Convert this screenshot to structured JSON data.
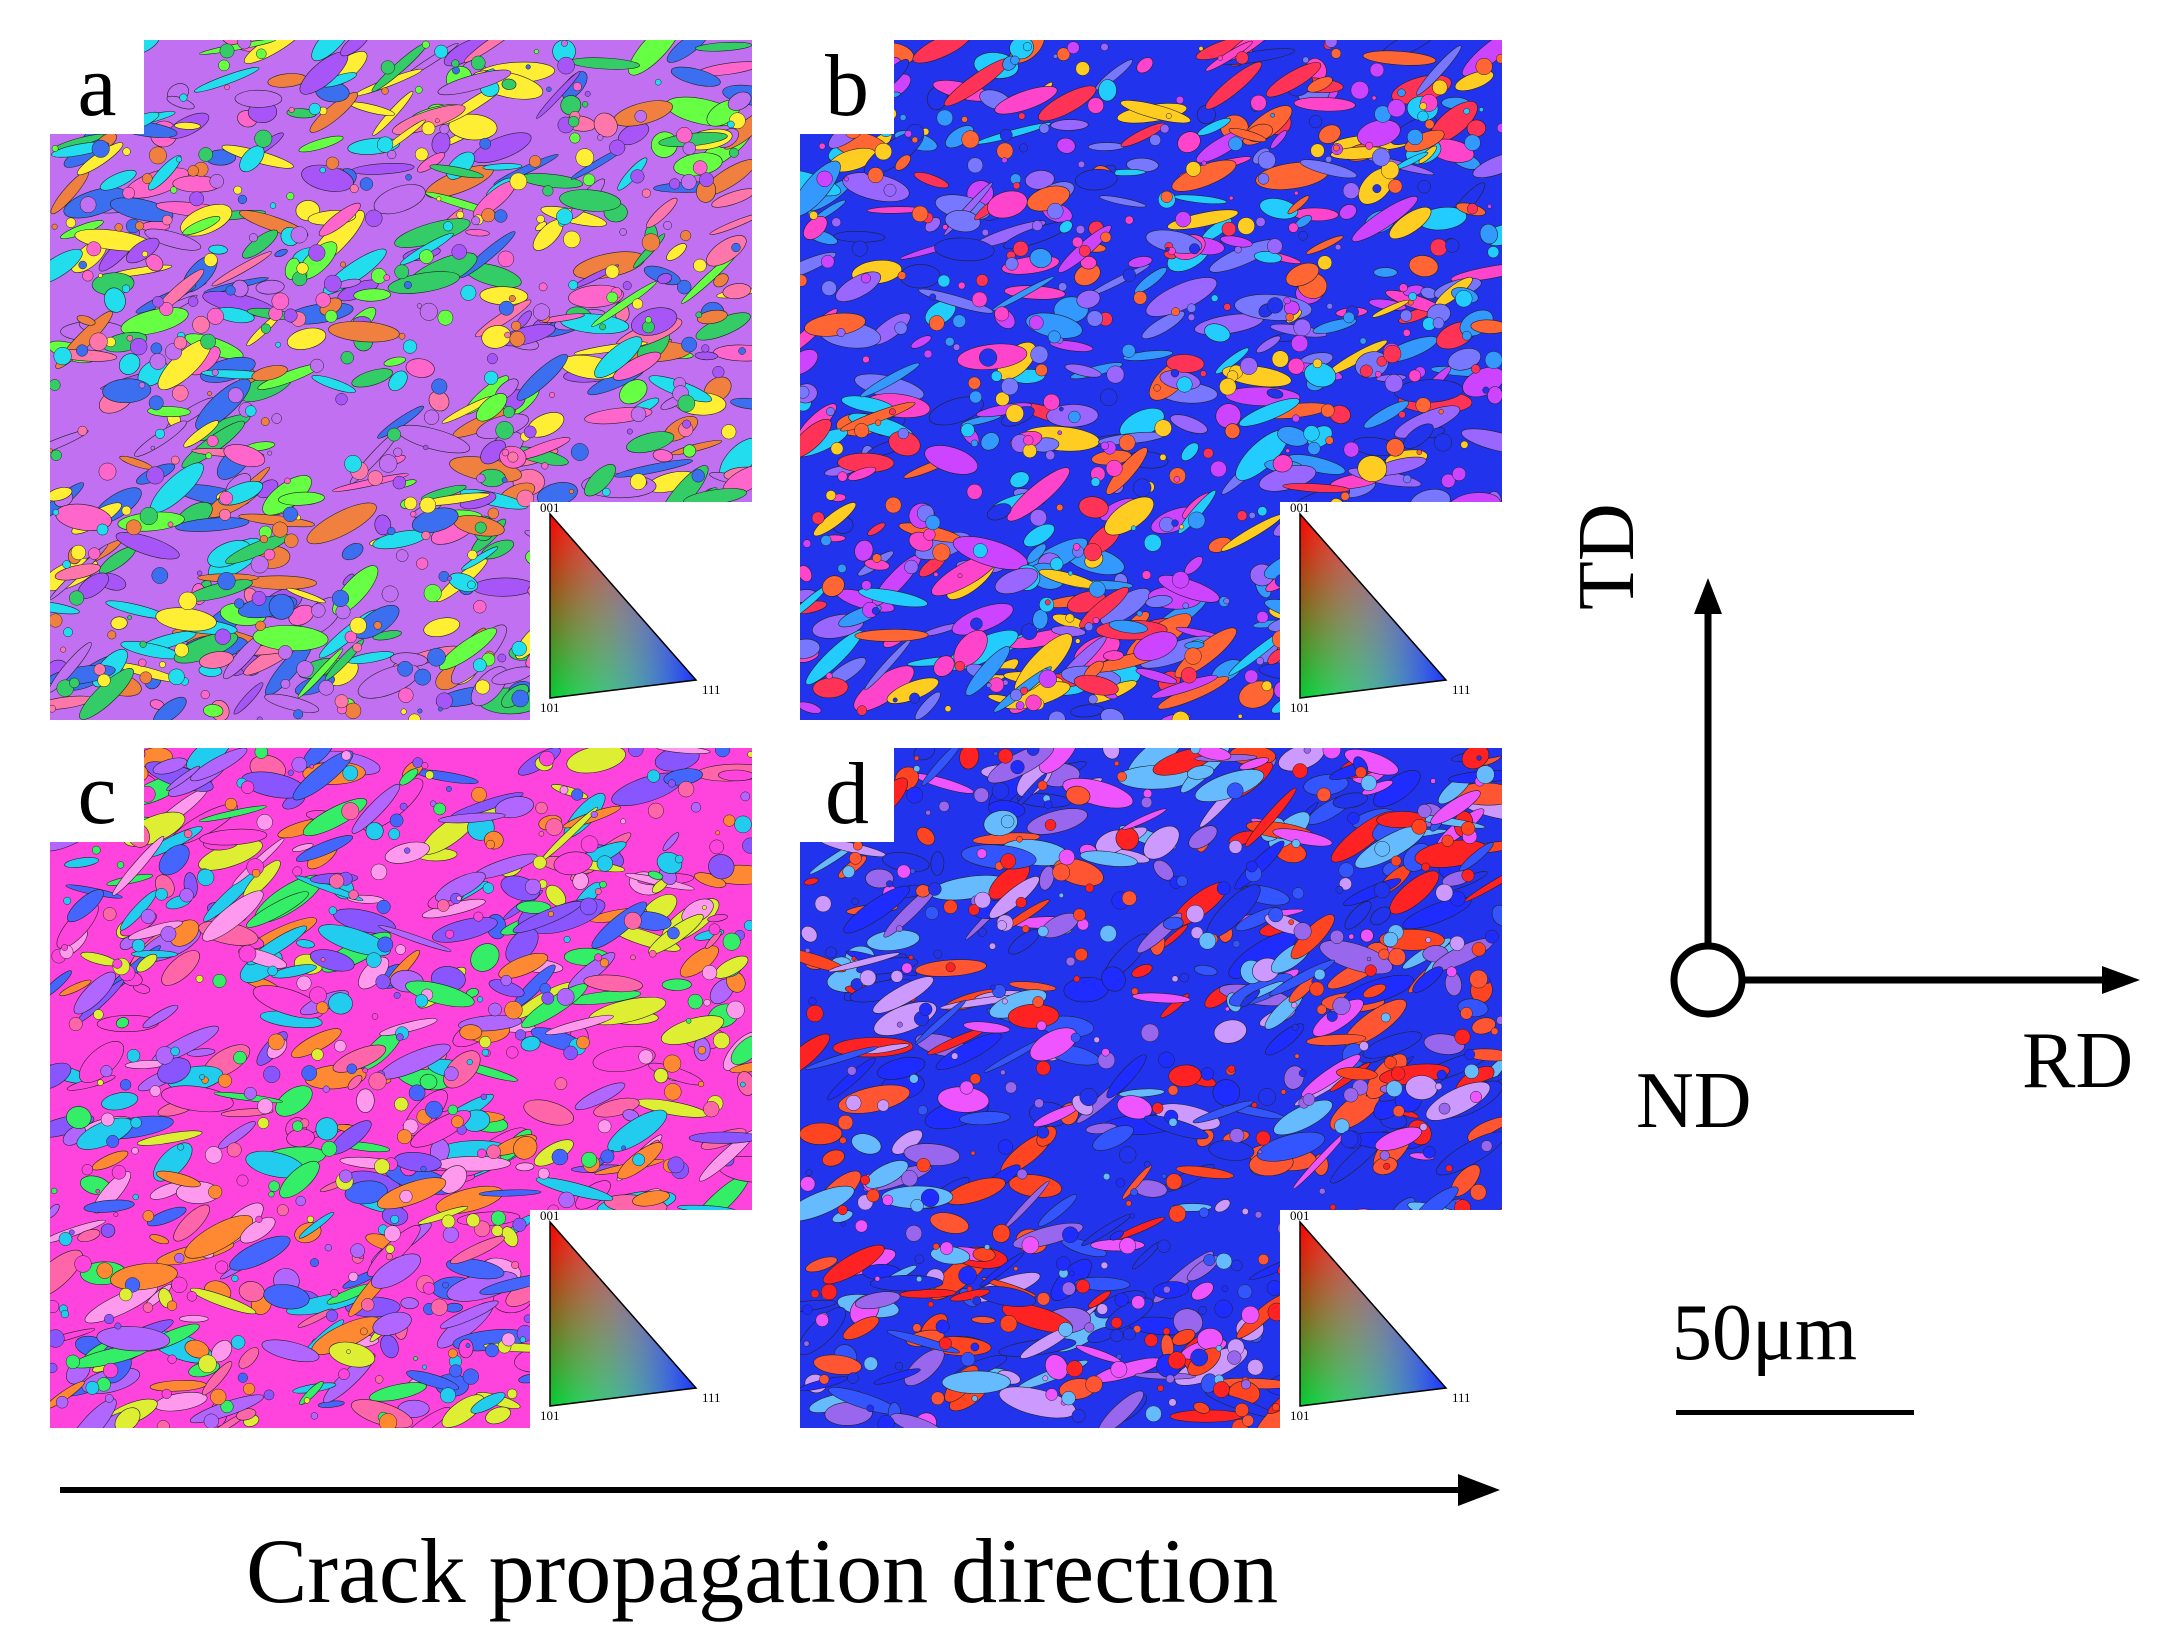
{
  "panels": [
    {
      "label": "a",
      "palette": [
        "#c070f0",
        "#ff66cc",
        "#33cc66",
        "#22ddee",
        "#ffee33",
        "#ff77aa",
        "#a855f7",
        "#3b6ff0",
        "#66ff44",
        "#f08040"
      ]
    },
    {
      "label": "b",
      "palette": [
        "#2233ee",
        "#ff44cc",
        "#ff6633",
        "#9966ff",
        "#3399ff",
        "#ffcc22",
        "#ff3355",
        "#22ccff",
        "#cc44ff",
        "#7777ff"
      ]
    },
    {
      "label": "c",
      "palette": [
        "#ff44dd",
        "#b066ff",
        "#ff8833",
        "#33ee66",
        "#22ccee",
        "#ff66aa",
        "#8855ff",
        "#ddee33",
        "#ff99ee",
        "#4466ff"
      ]
    },
    {
      "label": "d",
      "palette": [
        "#2233ee",
        "#ff2222",
        "#ff5533",
        "#3355ff",
        "#9966ee",
        "#ee55ff",
        "#66bbff",
        "#ff4422",
        "#1e2cff",
        "#cc99ff"
      ]
    }
  ],
  "ipf_key": {
    "top": "001",
    "left": "101",
    "right": "111"
  },
  "axes": {
    "vertical": "TD",
    "horizontal": "RD",
    "normal": "ND"
  },
  "scale_bar": {
    "label": "50μm"
  },
  "caption": "Crack propagation direction"
}
